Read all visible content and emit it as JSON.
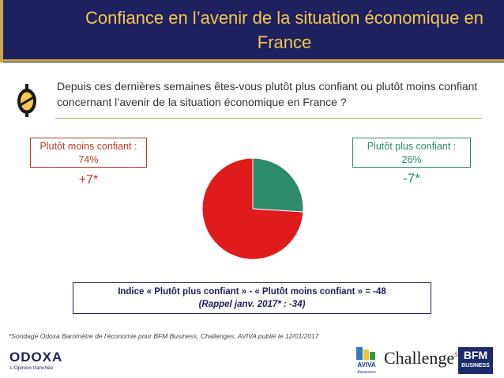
{
  "header": {
    "title": "Confiance en l’avenir de la situation économique en France"
  },
  "question": {
    "text": "Depuis ces dernières semaines êtes-vous plutôt plus confiant ou plutôt moins confiant concernant l’avenir de la situation économique en France ?"
  },
  "labels": {
    "left_box_line1": "Plutôt moins confiant :",
    "left_box_line2": "74%",
    "left_delta": "+7*",
    "right_box_line1": "Plutôt plus confiant :",
    "right_box_line2": "26%",
    "right_delta": "-7*"
  },
  "index": {
    "line1": "Indice « Plutôt plus confiant » - « Plutôt moins confiant » = -48",
    "line2": "(Rappel janv. 2017* : -34)"
  },
  "footnote": "*Sondage Odoxa Baromètre de l’économie pour BFM Business, Challenges, AVIVA publié le 12/01/2017",
  "logos": {
    "odoxa": "ODOXA",
    "odoxa_tagline": "L’Opinion tranchée",
    "aviva": "AVIVA",
    "aviva_sub": "Assurance",
    "challenges": "Challenge",
    "challenges_s": "s",
    "bfm": "BFM",
    "bfm_sub": "BUSINESS"
  },
  "colors": {
    "header_bg": "#1f2060",
    "title": "#f2c94c",
    "accent_gold": "#c7a94c",
    "less_confident": "#e01b1b",
    "more_confident": "#2e8b6a"
  },
  "chart_data": {
    "type": "pie",
    "series": [
      {
        "name": "Plutôt plus confiant",
        "value": 26,
        "color": "#2e8b6a"
      },
      {
        "name": "Plutôt moins confiant",
        "value": 74,
        "color": "#e01b1b"
      }
    ]
  }
}
